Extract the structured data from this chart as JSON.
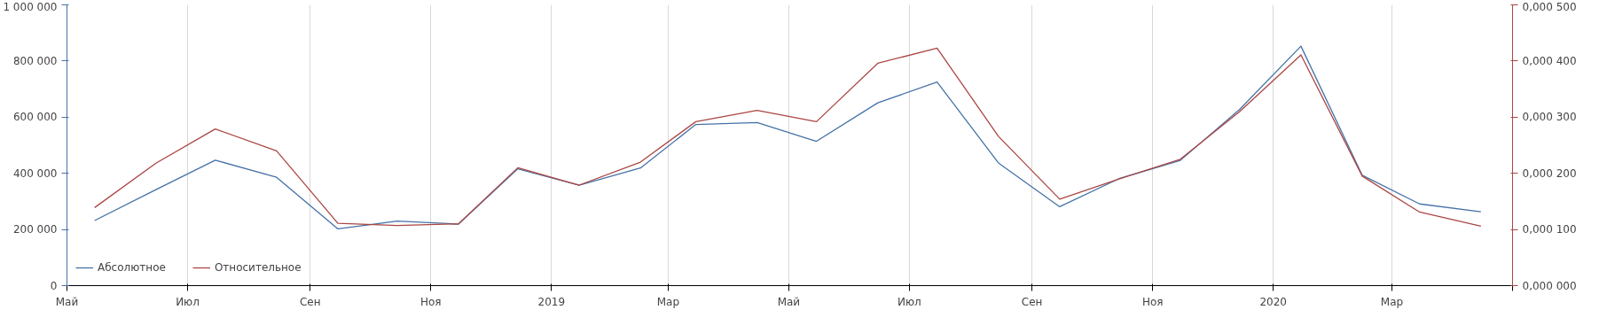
{
  "chart_data": {
    "type": "line",
    "x": [
      "2018-05-15",
      "2018-06-15",
      "2018-07-15",
      "2018-08-15",
      "2018-09-15",
      "2018-10-15",
      "2018-11-15",
      "2018-12-15",
      "2019-01-15",
      "2019-02-15",
      "2019-03-15",
      "2019-04-15",
      "2019-05-15",
      "2019-06-15",
      "2019-07-15",
      "2019-08-15",
      "2019-09-15",
      "2019-10-15",
      "2019-11-15",
      "2019-12-15",
      "2020-01-15",
      "2020-02-15",
      "2020-03-15",
      "2020-04-15"
    ],
    "series": [
      {
        "name": "Абсолютное",
        "color": "#4572a7",
        "values": [
          232000,
          342000,
          447000,
          386000,
          202000,
          230000,
          219000,
          416000,
          358000,
          419000,
          574000,
          581000,
          514000,
          651000,
          725000,
          437000,
          281000,
          381000,
          446000,
          628000,
          853000,
          393000,
          291000,
          263000
        ]
      },
      {
        "name": "Относительное",
        "color": "#aa4643",
        "axis": "y2",
        "values": [
          0.000139,
          0.000218,
          0.000279,
          0.00024,
          0.000111,
          0.000107,
          0.00011,
          0.00021,
          0.000179,
          0.00022,
          0.000292,
          0.000312,
          0.000292,
          0.000396,
          0.000423,
          0.000266,
          0.000154,
          0.00019,
          0.000225,
          0.00031,
          0.000411,
          0.000195,
          0.000131,
          0.000106
        ]
      }
    ],
    "xlim": [
      "2018-05-01",
      "2020-05-01"
    ],
    "xticks": [
      {
        "value": "2018-05-01",
        "label": "Май"
      },
      {
        "value": "2018-07-01",
        "label": "Июл"
      },
      {
        "value": "2018-09-01",
        "label": "Сен"
      },
      {
        "value": "2018-11-01",
        "label": "Ноя"
      },
      {
        "value": "2019-01-01",
        "label": "2019"
      },
      {
        "value": "2019-03-01",
        "label": "Мар"
      },
      {
        "value": "2019-05-01",
        "label": "Май"
      },
      {
        "value": "2019-07-01",
        "label": "Июл"
      },
      {
        "value": "2019-09-01",
        "label": "Сен"
      },
      {
        "value": "2019-11-01",
        "label": "Ноя"
      },
      {
        "value": "2020-01-01",
        "label": "2020"
      },
      {
        "value": "2020-03-01",
        "label": "Мар"
      },
      {
        "value": "2020-05-01",
        "label": null
      }
    ],
    "ylim": [
      0,
      1000000
    ],
    "yticks": [
      0,
      {
        "value": 200000,
        "label": "200 000"
      },
      {
        "value": 400000,
        "label": "400 000"
      },
      {
        "value": 600000,
        "label": "600 000"
      },
      {
        "value": 800000,
        "label": "800 000"
      },
      {
        "value": 1000000,
        "label": "1 000 000"
      }
    ],
    "y2lim": [
      0,
      0.0005
    ],
    "y2ticks": [
      {
        "value": 0,
        "label": "0,000 000"
      },
      {
        "value": 0.0001,
        "label": "0,000 100"
      },
      {
        "value": 0.0002,
        "label": "0,000 200"
      },
      {
        "value": 0.0003,
        "label": "0,000 300"
      },
      {
        "value": 0.0004,
        "label": "0,000 400"
      },
      {
        "value": 0.0005,
        "label": "0,000 500"
      }
    ],
    "grid": "x",
    "legend": "bottom left",
    "marker": "none",
    "line_style": "solid"
  }
}
